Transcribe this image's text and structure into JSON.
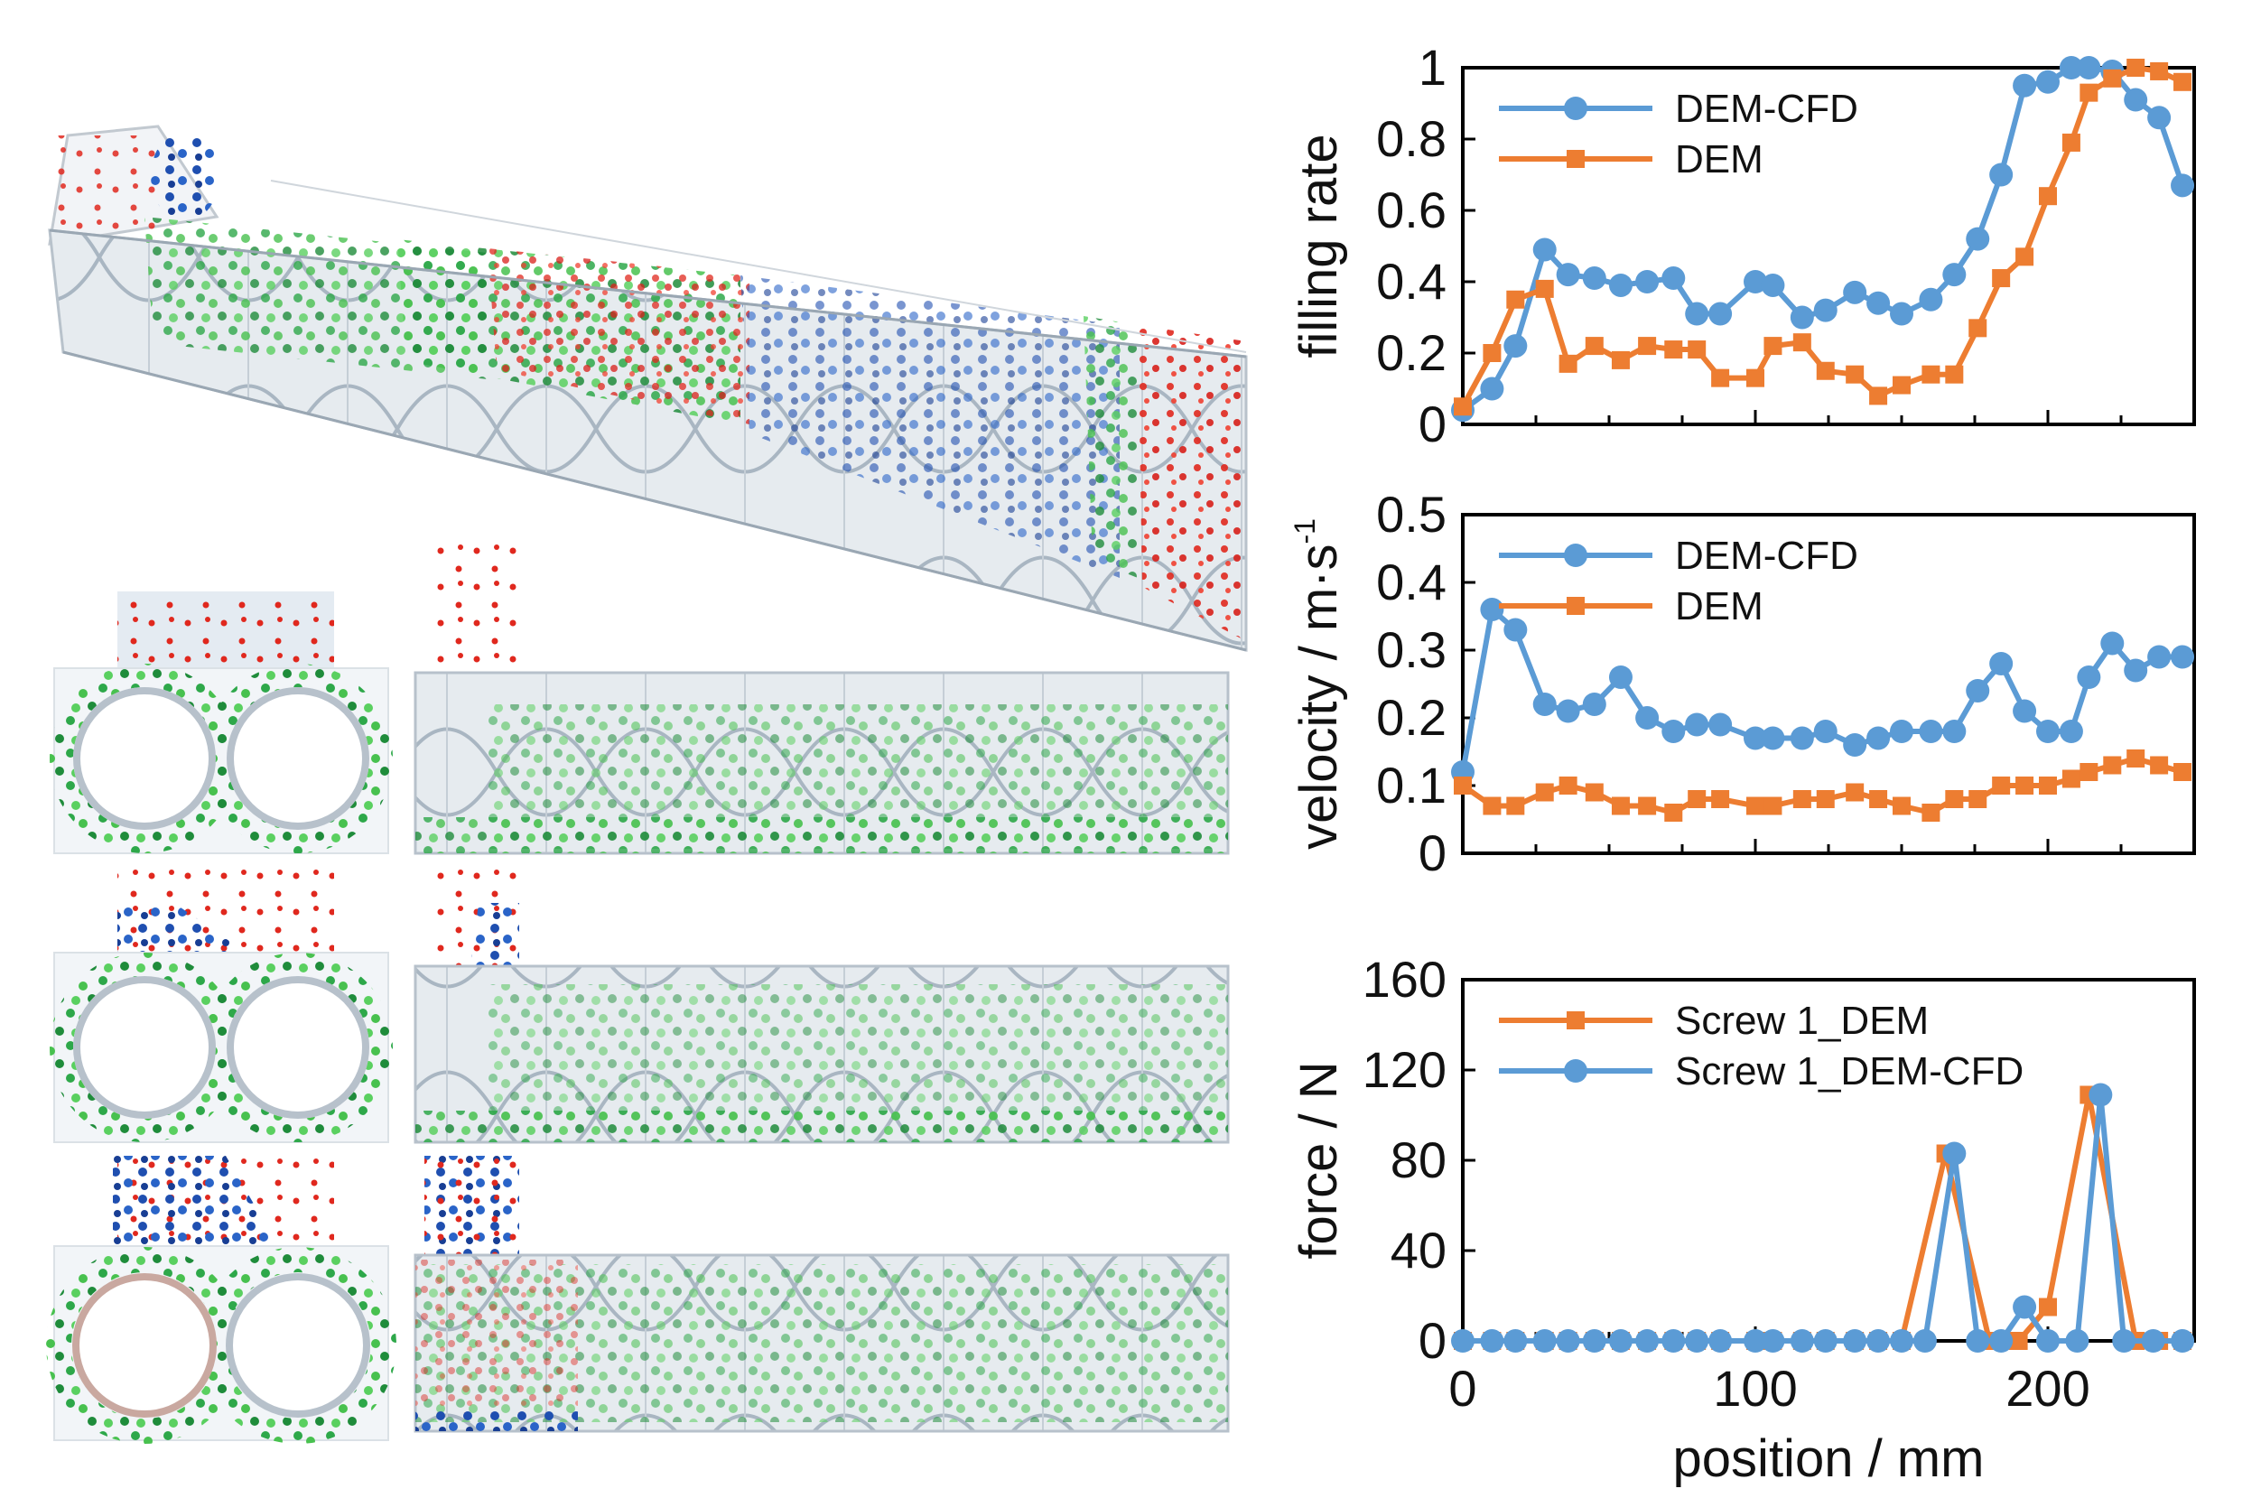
{
  "colors": {
    "dem_cfd": "#5b9bd5",
    "dem": "#ed7d31",
    "particle_green": "#2ea84a",
    "particle_red": "#e0281e",
    "particle_blue": "#1f4fb0",
    "screw_grey": "#c9d3dc"
  },
  "chart_data": [
    {
      "type": "line",
      "ylabel": "filling rate",
      "xlabel": "",
      "xlim": [
        0,
        250
      ],
      "ylim": [
        0,
        1
      ],
      "yticks": [
        "0",
        "0.2",
        "0.4",
        "0.6",
        "0.8",
        "1"
      ],
      "xticks": [],
      "legend_position": "top-left",
      "series": [
        {
          "name": "DEM-CFD",
          "marker": "circle",
          "x": [
            0,
            10,
            18,
            28,
            36,
            45,
            54,
            63,
            72,
            80,
            88,
            100,
            106,
            116,
            124,
            134,
            142,
            150,
            160,
            168,
            176,
            184,
            192,
            200,
            208,
            214,
            222,
            230,
            238,
            246
          ],
          "y": [
            0.04,
            0.1,
            0.22,
            0.49,
            0.42,
            0.41,
            0.39,
            0.4,
            0.41,
            0.31,
            0.31,
            0.4,
            0.39,
            0.3,
            0.32,
            0.37,
            0.34,
            0.31,
            0.35,
            0.42,
            0.52,
            0.7,
            0.95,
            0.96,
            1.0,
            1.0,
            0.99,
            0.91,
            0.86,
            0.67
          ]
        },
        {
          "name": "DEM",
          "marker": "square",
          "x": [
            0,
            10,
            18,
            28,
            36,
            45,
            54,
            63,
            72,
            80,
            88,
            100,
            106,
            116,
            124,
            134,
            142,
            150,
            160,
            168,
            176,
            184,
            192,
            200,
            208,
            214,
            222,
            230,
            238,
            246
          ],
          "y": [
            0.05,
            0.2,
            0.35,
            0.38,
            0.17,
            0.22,
            0.18,
            0.22,
            0.21,
            0.21,
            0.13,
            0.13,
            0.22,
            0.23,
            0.15,
            0.14,
            0.08,
            0.11,
            0.14,
            0.14,
            0.27,
            0.41,
            0.47,
            0.64,
            0.79,
            0.93,
            0.97,
            1.0,
            0.99,
            0.96
          ]
        }
      ]
    },
    {
      "type": "line",
      "ylabel": "velocity / m·s",
      "ylabel_superscript": "-1",
      "xlabel": "",
      "xlim": [
        0,
        250
      ],
      "ylim": [
        0,
        0.5
      ],
      "yticks": [
        "0",
        "0.1",
        "0.2",
        "0.3",
        "0.4",
        "0.5"
      ],
      "xticks": [],
      "legend_position": "top-left",
      "series": [
        {
          "name": "DEM-CFD",
          "marker": "circle",
          "x": [
            0,
            10,
            18,
            28,
            36,
            45,
            54,
            63,
            72,
            80,
            88,
            100,
            106,
            116,
            124,
            134,
            142,
            150,
            160,
            168,
            176,
            184,
            192,
            200,
            208,
            214,
            222,
            230,
            238,
            246
          ],
          "y": [
            0.12,
            0.36,
            0.33,
            0.22,
            0.21,
            0.22,
            0.26,
            0.2,
            0.18,
            0.19,
            0.19,
            0.17,
            0.17,
            0.17,
            0.18,
            0.16,
            0.17,
            0.18,
            0.18,
            0.18,
            0.24,
            0.28,
            0.21,
            0.18,
            0.18,
            0.26,
            0.31,
            0.27,
            0.29,
            0.29
          ]
        },
        {
          "name": "DEM",
          "marker": "square",
          "x": [
            0,
            10,
            18,
            28,
            36,
            45,
            54,
            63,
            72,
            80,
            88,
            100,
            106,
            116,
            124,
            134,
            142,
            150,
            160,
            168,
            176,
            184,
            192,
            200,
            208,
            214,
            222,
            230,
            238,
            246
          ],
          "y": [
            0.1,
            0.07,
            0.07,
            0.09,
            0.1,
            0.09,
            0.07,
            0.07,
            0.06,
            0.08,
            0.08,
            0.07,
            0.07,
            0.08,
            0.08,
            0.09,
            0.08,
            0.07,
            0.06,
            0.08,
            0.08,
            0.1,
            0.1,
            0.1,
            0.11,
            0.12,
            0.13,
            0.14,
            0.13,
            0.12
          ]
        }
      ]
    },
    {
      "type": "line",
      "ylabel": "force / N",
      "xlabel": "position / mm",
      "xlim": [
        0,
        250
      ],
      "ylim": [
        0,
        160
      ],
      "yticks": [
        "0",
        "40",
        "80",
        "120",
        "160"
      ],
      "xticks": [
        "0",
        "100",
        "200"
      ],
      "xtick_values": [
        0,
        100,
        200
      ],
      "legend_position": "top-left",
      "series": [
        {
          "name": "Screw 1_DEM",
          "marker": "square",
          "x": [
            0,
            10,
            18,
            28,
            36,
            45,
            54,
            63,
            72,
            80,
            88,
            100,
            106,
            116,
            124,
            134,
            142,
            150,
            165,
            180,
            185,
            190,
            200,
            214,
            230,
            238,
            246
          ],
          "y": [
            0,
            0,
            0,
            0,
            0,
            0,
            0,
            0,
            0,
            0,
            0,
            0,
            0,
            0,
            0,
            0,
            0,
            0,
            83,
            0,
            0,
            0,
            15,
            109,
            0,
            0,
            0
          ]
        },
        {
          "name": "Screw 1_DEM-CFD",
          "marker": "circle",
          "x": [
            0,
            10,
            18,
            28,
            36,
            45,
            54,
            63,
            72,
            80,
            88,
            100,
            106,
            116,
            124,
            134,
            142,
            150,
            158,
            168,
            176,
            184,
            192,
            200,
            210,
            218,
            226,
            236,
            246
          ],
          "y": [
            0,
            0,
            0,
            0,
            0,
            0,
            0,
            0,
            0,
            0,
            0,
            0,
            0,
            0,
            0,
            0,
            0,
            0,
            0,
            83,
            0,
            0,
            15,
            0,
            0,
            109,
            0,
            0,
            0
          ]
        }
      ]
    }
  ]
}
